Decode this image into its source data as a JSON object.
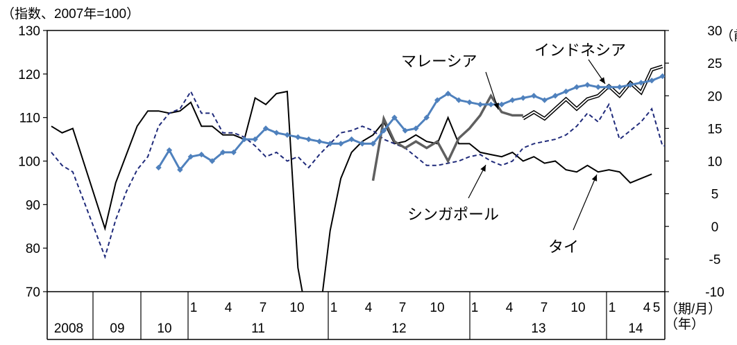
{
  "chart_data": {
    "type": "line",
    "ylabel_left": "（指数、2007年=100）",
    "ylabel_right": "（前",
    "ylim_left": [
      70,
      130
    ],
    "yticks_left": [
      "130",
      "120",
      "110",
      "100",
      "90",
      "80",
      "70"
    ],
    "ylim_right": [
      -10,
      30
    ],
    "yticks_right": [
      "30",
      "25",
      "20",
      "15",
      "10",
      "5",
      "0",
      "-5",
      "-10"
    ],
    "x_unit_label_1": "（期/月）",
    "x_unit_label_2": "（年）",
    "x_month_ticks": [
      "1",
      "4",
      "7",
      "10",
      "1",
      "4",
      "7",
      "10",
      "1",
      "4",
      "7",
      "10",
      "1",
      "4",
      "5"
    ],
    "x_year_labels": [
      "2008",
      "09",
      "10",
      "11",
      "12",
      "13",
      "14"
    ],
    "annotations": {
      "malaysia": "マレーシア",
      "indonesia": "インドネシア",
      "singapore": "シンガポール",
      "thailand": "タイ"
    },
    "x_time_start": "2008-Q1",
    "series": [
      {
        "name": "タイ",
        "axis": "left",
        "style": "black-solid",
        "points": [
          [
            0,
            108
          ],
          [
            1,
            106.5
          ],
          [
            2,
            107.5
          ],
          [
            5,
            84.5
          ],
          [
            6,
            95
          ],
          [
            7,
            101.5
          ],
          [
            8,
            108
          ],
          [
            9,
            111.5
          ],
          [
            10,
            111.5
          ],
          [
            11,
            111
          ],
          [
            12,
            111.5
          ],
          [
            13,
            113.5
          ],
          [
            14,
            108
          ],
          [
            15,
            108
          ],
          [
            16,
            106
          ],
          [
            17,
            106
          ],
          [
            18,
            105
          ],
          [
            19,
            114.5
          ],
          [
            20,
            113
          ],
          [
            21,
            115.5
          ],
          [
            22,
            116
          ],
          [
            23,
            75.5
          ],
          [
            24,
            62
          ],
          [
            25,
            64
          ],
          [
            26,
            84
          ],
          [
            27,
            96
          ],
          [
            28,
            102
          ],
          [
            29,
            104.5
          ],
          [
            30,
            106
          ],
          [
            31,
            109
          ],
          [
            32,
            104
          ],
          [
            33,
            104.5
          ],
          [
            34,
            106
          ],
          [
            35,
            104.5
          ],
          [
            36,
            104
          ],
          [
            37,
            110
          ],
          [
            38,
            104
          ],
          [
            39,
            104
          ],
          [
            40,
            102
          ],
          [
            41,
            101.5
          ],
          [
            42,
            101
          ],
          [
            43,
            102
          ],
          [
            44,
            100
          ],
          [
            45,
            101
          ],
          [
            46,
            99.5
          ],
          [
            47,
            100
          ],
          [
            48,
            98
          ],
          [
            49,
            97.5
          ],
          [
            50,
            99
          ],
          [
            51,
            97.5
          ],
          [
            52,
            98
          ],
          [
            53,
            97.5
          ],
          [
            54,
            95
          ],
          [
            55,
            96
          ],
          [
            56,
            97
          ]
        ]
      },
      {
        "name": "シンガポール",
        "axis": "left",
        "style": "navy-dashed",
        "points": [
          [
            0,
            102
          ],
          [
            1,
            99
          ],
          [
            2,
            97.5
          ],
          [
            5,
            78
          ],
          [
            6,
            86.5
          ],
          [
            7,
            93
          ],
          [
            8,
            98
          ],
          [
            9,
            101
          ],
          [
            10,
            108
          ],
          [
            11,
            111
          ],
          [
            12,
            112
          ],
          [
            13,
            116
          ],
          [
            14,
            111
          ],
          [
            15,
            111
          ],
          [
            16,
            106.5
          ],
          [
            17,
            106.5
          ],
          [
            18,
            105.5
          ],
          [
            19,
            103.5
          ],
          [
            20,
            101
          ],
          [
            21,
            102
          ],
          [
            22,
            100
          ],
          [
            23,
            101
          ],
          [
            24,
            98.5
          ],
          [
            25,
            101.5
          ],
          [
            26,
            104
          ],
          [
            27,
            106.5
          ],
          [
            28,
            107
          ],
          [
            29,
            108
          ],
          [
            30,
            107
          ],
          [
            31,
            105
          ],
          [
            32,
            104
          ],
          [
            33,
            103
          ],
          [
            34,
            101
          ],
          [
            35,
            99
          ],
          [
            36,
            99
          ],
          [
            37,
            99.5
          ],
          [
            38,
            100
          ],
          [
            39,
            101
          ],
          [
            40,
            101.5
          ],
          [
            41,
            100
          ],
          [
            42,
            99
          ],
          [
            43,
            100
          ],
          [
            44,
            103
          ],
          [
            45,
            104
          ],
          [
            46,
            104.5
          ],
          [
            47,
            105
          ],
          [
            48,
            106
          ],
          [
            49,
            108
          ],
          [
            50,
            111
          ],
          [
            51,
            109
          ],
          [
            52,
            113
          ],
          [
            53,
            105
          ],
          [
            54,
            107
          ],
          [
            55,
            109
          ],
          [
            56,
            112
          ],
          [
            57,
            103.5
          ],
          [
            58,
            103.5
          ]
        ]
      },
      {
        "name": "インドネシア",
        "axis": "right",
        "style": "double-line",
        "points": [
          [
            44,
            16.5
          ],
          [
            45,
            17.5
          ],
          [
            46,
            16.5
          ],
          [
            47,
            18
          ],
          [
            48,
            19.5
          ],
          [
            49,
            18
          ],
          [
            50,
            19.5
          ],
          [
            51,
            20
          ],
          [
            52,
            21.5
          ],
          [
            53,
            20
          ],
          [
            54,
            22
          ],
          [
            55,
            20.5
          ],
          [
            56,
            24
          ],
          [
            57,
            24.5
          ]
        ]
      },
      {
        "name": "マレーシア",
        "axis": "right",
        "style": "gray-thick",
        "points": [
          [
            30,
            7
          ],
          [
            31,
            16.5
          ],
          [
            32,
            13
          ],
          [
            33,
            12
          ],
          [
            34,
            13
          ],
          [
            35,
            12
          ],
          [
            36,
            13
          ],
          [
            37,
            10
          ],
          [
            38,
            13.5
          ],
          [
            39,
            15
          ],
          [
            40,
            17
          ],
          [
            41,
            20
          ],
          [
            42,
            17.5
          ],
          [
            43,
            17
          ],
          [
            44,
            17
          ]
        ]
      },
      {
        "name": "",
        "axis": "left",
        "style": "blue-diamond",
        "points": [
          [
            10,
            98.5
          ],
          [
            11,
            102.5
          ],
          [
            12,
            98
          ],
          [
            13,
            101
          ],
          [
            14,
            101.5
          ],
          [
            15,
            100
          ],
          [
            16,
            102
          ],
          [
            17,
            102
          ],
          [
            18,
            105
          ],
          [
            19,
            105
          ],
          [
            20,
            107.5
          ],
          [
            21,
            106.5
          ],
          [
            22,
            106
          ],
          [
            23,
            105.5
          ],
          [
            24,
            105
          ],
          [
            25,
            104.5
          ],
          [
            26,
            104
          ],
          [
            27,
            104
          ],
          [
            28,
            105
          ],
          [
            29,
            104
          ],
          [
            30,
            104
          ],
          [
            31,
            107
          ],
          [
            32,
            110
          ],
          [
            33,
            107
          ],
          [
            34,
            107.5
          ],
          [
            35,
            110
          ],
          [
            36,
            114
          ],
          [
            37,
            115.5
          ],
          [
            38,
            114
          ],
          [
            39,
            113.5
          ],
          [
            40,
            113
          ],
          [
            41,
            113
          ],
          [
            42,
            113
          ],
          [
            43,
            114
          ],
          [
            44,
            114.5
          ],
          [
            45,
            115
          ],
          [
            46,
            114
          ],
          [
            47,
            115
          ],
          [
            48,
            116
          ],
          [
            49,
            117
          ],
          [
            50,
            117.5
          ],
          [
            51,
            117
          ],
          [
            52,
            117
          ],
          [
            53,
            117
          ],
          [
            54,
            117.5
          ],
          [
            55,
            118
          ],
          [
            56,
            118.5
          ],
          [
            57,
            119.5
          ]
        ]
      }
    ]
  }
}
